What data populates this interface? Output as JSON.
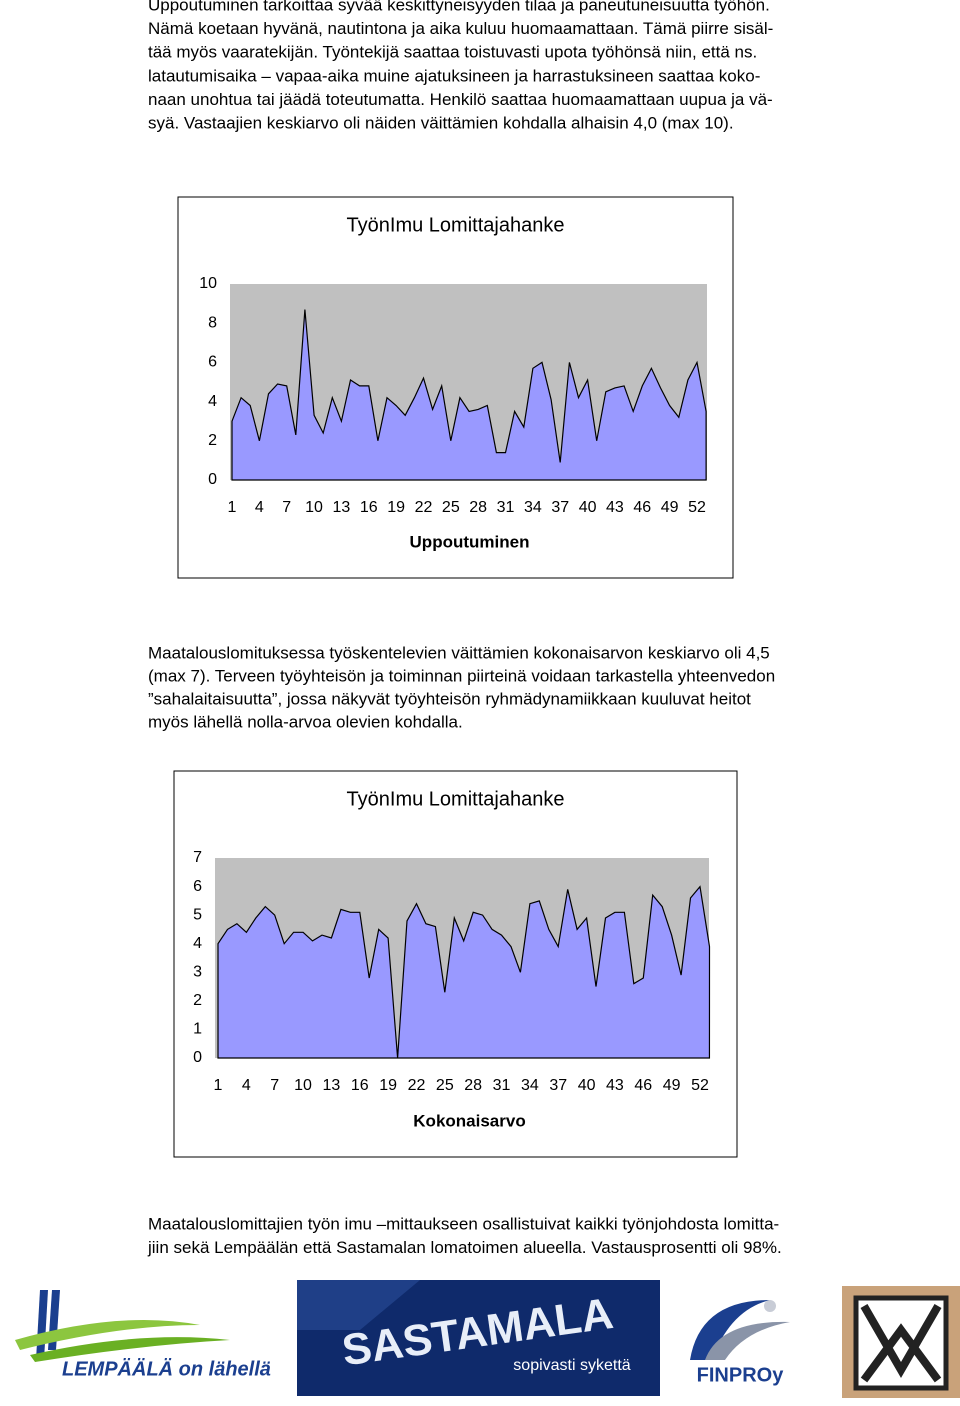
{
  "intro_lines": [
    "Uppoutuminen tarkoittaa syvää keskittyneisyyden tilaa ja paneutuneisuutta työhön.",
    "Nämä koetaan hyvänä, nautintona ja aika kuluu huomaamattaan. Tämä piirre sisäl-",
    "tää myös vaaratekijän. Työntekijä saattaa toistuvasti upota työhönsä niin, että ns.",
    "latautumisaika – vapaa-aika muine ajatuksineen ja harrastuksineen saattaa koko-",
    "naan unohtua tai jäädä toteutumatta. Henkilö saattaa huomaamattaan uupua ja vä-",
    "syä. Vastaajien keskiarvo oli näiden väittämien kohdalla alhaisin 4,0 (max 10)."
  ],
  "middle_lines": [
    "Maatalouslomituksessa työskentelevien väittämien kokonaisarvon keskiarvo oli 4,5",
    "(max 7). Terveen työyhteisön ja toiminnan piirteinä voidaan tarkastella yhteenvedon",
    "”sahalaitaisuutta”, jossa näkyvät työyhteisön ryhmädynamiikkaan kuuluvat heitot",
    "myös lähellä nolla-arvoa olevien kohdalla."
  ],
  "closing_lines": [
    "Maatalouslomittajien työn imu –mittaukseen osallistuivat kaikki työnjohdosta lomitta-",
    "jiin sekä Lempäälän että Sastamalan lomatoimen alueella. Vastausprosentti oli 98%."
  ],
  "chart_data": [
    {
      "type": "area",
      "title": "TyönImu Lomittajahanke",
      "x_label": "Uppoutuminen",
      "categories": [
        1,
        null,
        null,
        4,
        null,
        null,
        7,
        null,
        null,
        10,
        null,
        null,
        13,
        null,
        null,
        16,
        null,
        null,
        19,
        null,
        null,
        22,
        null,
        null,
        25,
        null,
        null,
        28,
        null,
        null,
        31,
        null,
        null,
        34,
        null,
        null,
        37,
        null,
        null,
        40,
        null,
        null,
        43,
        null,
        null,
        46,
        null,
        null,
        49,
        null,
        null,
        52,
        null
      ],
      "values": [
        3.0,
        4.2,
        3.8,
        2.0,
        4.4,
        4.9,
        4.8,
        2.3,
        8.7,
        3.3,
        2.4,
        4.2,
        3.0,
        5.1,
        4.8,
        4.8,
        2.0,
        4.2,
        3.8,
        3.3,
        4.2,
        5.2,
        3.6,
        4.8,
        2.0,
        4.2,
        3.5,
        3.6,
        3.8,
        1.4,
        1.4,
        3.5,
        2.7,
        5.7,
        6.0,
        4.1,
        0.9,
        6.0,
        4.2,
        5.1,
        2.0,
        4.5,
        4.7,
        4.8,
        3.5,
        4.8,
        5.7,
        4.7,
        3.8,
        3.2,
        5.1,
        6.0,
        3.5
      ],
      "color": "#9999ff",
      "plot_background": "#c0c0c0",
      "ylim": [
        0,
        10
      ],
      "yticks": [
        0,
        2,
        4,
        6,
        8,
        10
      ],
      "grid": false
    },
    {
      "type": "area",
      "title": "TyönImu Lomittajahanke",
      "x_label": "Kokonaisarvo",
      "categories": [
        1,
        null,
        null,
        4,
        null,
        null,
        7,
        null,
        null,
        10,
        null,
        null,
        13,
        null,
        null,
        16,
        null,
        null,
        19,
        null,
        null,
        22,
        null,
        null,
        25,
        null,
        null,
        28,
        null,
        null,
        31,
        null,
        null,
        34,
        null,
        null,
        37,
        null,
        null,
        40,
        null,
        null,
        43,
        null,
        null,
        46,
        null,
        null,
        49,
        null,
        null,
        52,
        null
      ],
      "values": [
        4.0,
        4.5,
        4.7,
        4.4,
        4.9,
        5.3,
        5.0,
        4.0,
        4.4,
        4.4,
        4.1,
        4.3,
        4.2,
        5.2,
        5.1,
        5.1,
        2.8,
        4.5,
        4.2,
        0,
        4.8,
        5.4,
        4.7,
        4.6,
        2.3,
        4.9,
        4.1,
        5.1,
        5.0,
        4.5,
        4.3,
        3.9,
        3.0,
        5.4,
        5.5,
        4.5,
        3.9,
        5.9,
        4.5,
        4.9,
        2.5,
        4.9,
        5.1,
        5.1,
        2.6,
        2.8,
        5.7,
        5.3,
        4.3,
        2.9,
        5.6,
        6.0,
        3.9
      ],
      "color": "#9999ff",
      "plot_background": "#c0c0c0",
      "ylim": [
        0,
        7
      ],
      "yticks": [
        0,
        1,
        2,
        3,
        4,
        5,
        6,
        7
      ],
      "grid": false
    }
  ],
  "logos": {
    "lempaala": "LEMPÄÄLÄ on lähellä",
    "sastamala": "SASTAMALA",
    "sastamala_slogan": "sopivasti sykettä",
    "finproy": "FINPROy"
  }
}
